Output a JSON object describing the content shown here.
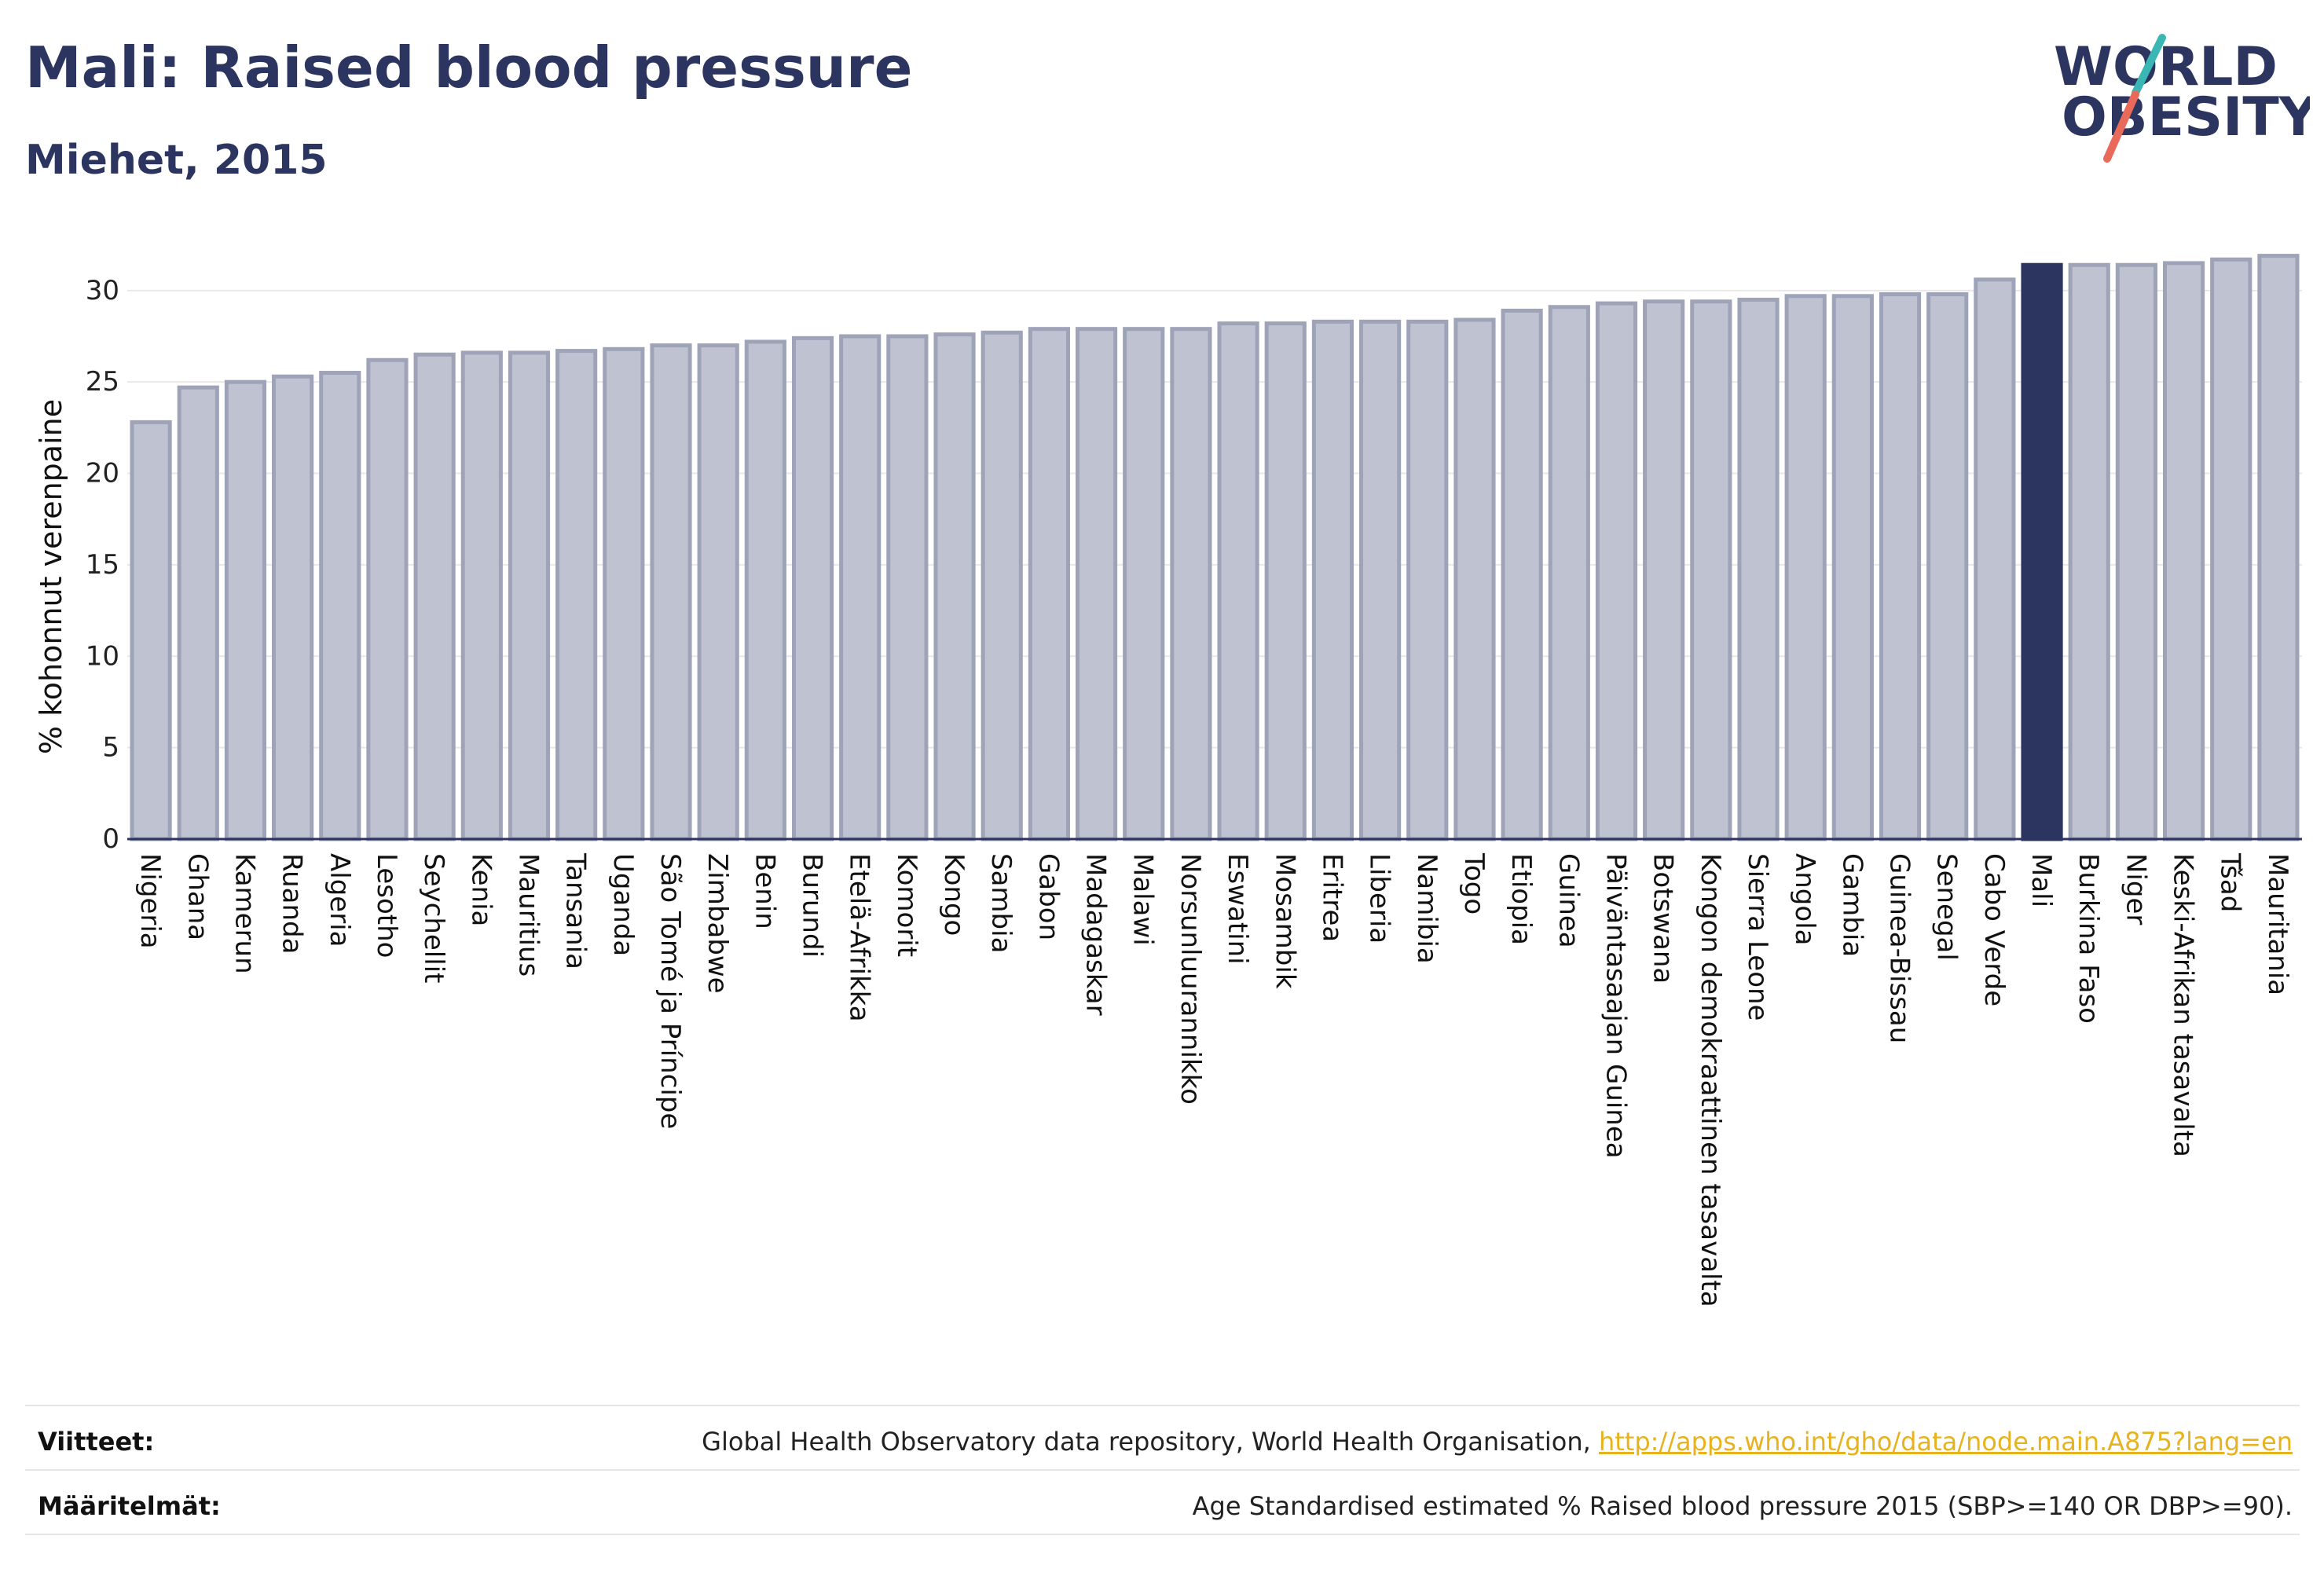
{
  "header": {
    "title": "Mali: Raised blood pressure",
    "subtitle": "Miehet, 2015",
    "logo_line1": "WORLD",
    "logo_line2": "OBESITY"
  },
  "colors": {
    "bar": "#bfc3d1",
    "bar_border": "#9ea3b8",
    "highlight": "#2b3560",
    "title": "#2b3560",
    "logo_teal": "#3ab7b5",
    "logo_coral": "#e96a5a",
    "link": "#e8b21c"
  },
  "chart_data": {
    "type": "bar",
    "ylabel": "% kohonnut verenpaine",
    "ylim": [
      0,
      33
    ],
    "yticks": [
      0,
      5,
      10,
      15,
      20,
      25,
      30
    ],
    "grid": true,
    "highlight": "Mali",
    "categories": [
      "Nigeria",
      "Ghana",
      "Kamerun",
      "Ruanda",
      "Algeria",
      "Lesotho",
      "Seychellit",
      "Kenia",
      "Mauritius",
      "Tansania",
      "Uganda",
      "São Tomé ja Príncipe",
      "Zimbabwe",
      "Benin",
      "Burundi",
      "Etelä-Afrikka",
      "Komorit",
      "Kongo",
      "Sambia",
      "Gabon",
      "Madagaskar",
      "Malawi",
      "Norsunluurannikko",
      "Eswatini",
      "Mosambik",
      "Eritrea",
      "Liberia",
      "Namibia",
      "Togo",
      "Etiopia",
      "Guinea",
      "Päiväntasaajan Guinea",
      "Botswana",
      "Kongon demokraattinen tasavalta",
      "Sierra Leone",
      "Angola",
      "Gambia",
      "Guinea-Bissau",
      "Senegal",
      "Cabo Verde",
      "Mali",
      "Burkina Faso",
      "Niger",
      "Keski-Afrikan tasavalta",
      "Tšad",
      "Mauritania"
    ],
    "values": [
      22.8,
      24.7,
      25.0,
      25.3,
      25.5,
      26.2,
      26.5,
      26.6,
      26.6,
      26.7,
      26.8,
      27.0,
      27.0,
      27.2,
      27.4,
      27.5,
      27.5,
      27.6,
      27.7,
      27.9,
      27.9,
      27.9,
      27.9,
      28.2,
      28.2,
      28.3,
      28.3,
      28.3,
      28.4,
      28.9,
      29.1,
      29.3,
      29.4,
      29.4,
      29.5,
      29.7,
      29.7,
      29.8,
      29.8,
      30.6,
      31.4,
      31.4,
      31.4,
      31.5,
      31.7,
      31.9
    ]
  },
  "footer": {
    "sources_label": "Viitteet:",
    "sources_text": "Global Health Observatory data repository, World Health Organisation, ",
    "sources_link": "http://apps.who.int/gho/data/node.main.A875?lang=en",
    "definitions_label": "Määritelmät:",
    "definitions_text": "Age Standardised estimated % Raised blood pressure 2015 (SBP>=140 OR DBP>=90)."
  }
}
